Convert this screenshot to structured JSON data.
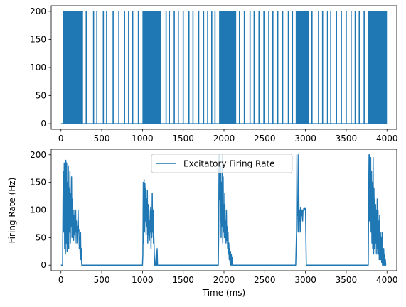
{
  "chart_data": [
    {
      "type": "line",
      "title": "",
      "xlabel": "",
      "ylabel": "",
      "xlim": [
        -120,
        4120
      ],
      "ylim": [
        -10,
        210
      ],
      "xticks": [
        0,
        500,
        1000,
        1500,
        2000,
        2500,
        3000,
        3500,
        4000
      ],
      "yticks": [
        0,
        50,
        100,
        150,
        200
      ],
      "color": "#1f77b4",
      "series": [
        {
          "style": "binary-spike-train",
          "baseline": 0,
          "peak": 200,
          "burst_segments": [
            [
              20,
              270
            ],
            [
              1000,
              1230
            ],
            [
              1940,
              2150
            ],
            [
              2880,
              3040
            ],
            [
              3770,
              4000
            ]
          ],
          "sparse_spikes": [
            310,
            400,
            440,
            520,
            560,
            640,
            710,
            780,
            830,
            880,
            950,
            1290,
            1330,
            1390,
            1440,
            1500,
            1570,
            1620,
            1690,
            1750,
            1800,
            1850,
            1890,
            2190,
            2250,
            2320,
            2370,
            2430,
            2490,
            2550,
            2600,
            2660,
            2720,
            2790,
            2840,
            3080,
            3160,
            3210,
            3270,
            3310,
            3380,
            3440,
            3500,
            3560,
            3610,
            3660,
            3720
          ]
        }
      ]
    },
    {
      "type": "line",
      "title": "",
      "xlabel": "Time (ms)",
      "ylabel": "Firing Rate (Hz)",
      "xlim": [
        -120,
        4120
      ],
      "ylim": [
        -10,
        210
      ],
      "xticks": [
        0,
        500,
        1000,
        1500,
        2000,
        2500,
        3000,
        3500,
        4000
      ],
      "yticks": [
        0,
        50,
        100,
        150,
        200
      ],
      "legend": "top-center",
      "color": "#1f77b4",
      "series": [
        {
          "name": "Excitatory Firing Rate",
          "points": [
            [
              0,
              0
            ],
            [
              20,
              0
            ],
            [
              25,
              120
            ],
            [
              30,
              170
            ],
            [
              35,
              60
            ],
            [
              40,
              185
            ],
            [
              45,
              30
            ],
            [
              50,
              175
            ],
            [
              55,
              20
            ],
            [
              60,
              190
            ],
            [
              65,
              40
            ],
            [
              70,
              185
            ],
            [
              75,
              25
            ],
            [
              80,
              150
            ],
            [
              85,
              50
            ],
            [
              90,
              180
            ],
            [
              95,
              30
            ],
            [
              100,
              140
            ],
            [
              105,
              60
            ],
            [
              110,
              170
            ],
            [
              115,
              40
            ],
            [
              120,
              130
            ],
            [
              125,
              70
            ],
            [
              130,
              160
            ],
            [
              135,
              50
            ],
            [
              140,
              120
            ],
            [
              145,
              60
            ],
            [
              150,
              100
            ],
            [
              155,
              45
            ],
            [
              160,
              90
            ],
            [
              165,
              55
            ],
            [
              170,
              100
            ],
            [
              175,
              40
            ],
            [
              180,
              100
            ],
            [
              185,
              60
            ],
            [
              190,
              80
            ],
            [
              195,
              40
            ],
            [
              200,
              70
            ],
            [
              205,
              50
            ],
            [
              210,
              100
            ],
            [
              215,
              60
            ],
            [
              220,
              65
            ],
            [
              225,
              30
            ],
            [
              230,
              50
            ],
            [
              235,
              20
            ],
            [
              240,
              60
            ],
            [
              245,
              10
            ],
            [
              250,
              30
            ],
            [
              255,
              0
            ],
            [
              260,
              0
            ],
            [
              1000,
              0
            ],
            [
              1005,
              20
            ],
            [
              1010,
              150
            ],
            [
              1015,
              40
            ],
            [
              1020,
              155
            ],
            [
              1025,
              60
            ],
            [
              1030,
              148
            ],
            [
              1035,
              80
            ],
            [
              1040,
              140
            ],
            [
              1045,
              55
            ],
            [
              1050,
              120
            ],
            [
              1055,
              70
            ],
            [
              1060,
              135
            ],
            [
              1065,
              40
            ],
            [
              1070,
              110
            ],
            [
              1075,
              55
            ],
            [
              1080,
              100
            ],
            [
              1085,
              45
            ],
            [
              1090,
              80
            ],
            [
              1095,
              60
            ],
            [
              1100,
              105
            ],
            [
              1105,
              30
            ],
            [
              1110,
              100
            ],
            [
              1115,
              50
            ],
            [
              1120,
              130
            ],
            [
              1125,
              60
            ],
            [
              1130,
              100
            ],
            [
              1135,
              40
            ],
            [
              1140,
              50
            ],
            [
              1145,
              20
            ],
            [
              1150,
              0
            ],
            [
              1160,
              0
            ],
            [
              1170,
              25
            ],
            [
              1175,
              0
            ],
            [
              1180,
              30
            ],
            [
              1185,
              0
            ],
            [
              1190,
              0
            ],
            [
              1930,
              0
            ],
            [
              1935,
              60
            ],
            [
              1940,
              200
            ],
            [
              1945,
              120
            ],
            [
              1950,
              195
            ],
            [
              1955,
              80
            ],
            [
              1960,
              180
            ],
            [
              1965,
              50
            ],
            [
              1970,
              150
            ],
            [
              1975,
              70
            ],
            [
              1980,
              200
            ],
            [
              1985,
              40
            ],
            [
              1990,
              160
            ],
            [
              1995,
              60
            ],
            [
              2000,
              110
            ],
            [
              2005,
              50
            ],
            [
              2010,
              130
            ],
            [
              2015,
              55
            ],
            [
              2020,
              80
            ],
            [
              2025,
              40
            ],
            [
              2030,
              100
            ],
            [
              2035,
              45
            ],
            [
              2040,
              70
            ],
            [
              2045,
              30
            ],
            [
              2050,
              60
            ],
            [
              2055,
              20
            ],
            [
              2060,
              40
            ],
            [
              2065,
              10
            ],
            [
              2070,
              30
            ],
            [
              2075,
              5
            ],
            [
              2080,
              25
            ],
            [
              2085,
              0
            ],
            [
              2090,
              20
            ],
            [
              2095,
              0
            ],
            [
              2100,
              15
            ],
            [
              2105,
              0
            ],
            [
              2110,
              0
            ],
            [
              2880,
              0
            ],
            [
              2885,
              30
            ],
            [
              2890,
              60
            ],
            [
              2895,
              200
            ],
            [
              2900,
              90
            ],
            [
              2905,
              100
            ],
            [
              2910,
              60
            ],
            [
              2915,
              200
            ],
            [
              2920,
              100
            ],
            [
              2925,
              80
            ],
            [
              2930,
              100
            ],
            [
              2935,
              60
            ],
            [
              2940,
              105
            ],
            [
              2945,
              80
            ],
            [
              2950,
              100
            ],
            [
              2955,
              90
            ],
            [
              2960,
              100
            ],
            [
              2965,
              80
            ],
            [
              2970,
              100
            ],
            [
              2975,
              100
            ],
            [
              2980,
              103
            ],
            [
              2985,
              100
            ],
            [
              2990,
              104
            ],
            [
              2995,
              100
            ],
            [
              3000,
              104
            ],
            [
              3005,
              50
            ],
            [
              3010,
              0
            ],
            [
              3020,
              0
            ],
            [
              3770,
              0
            ],
            [
              3775,
              120
            ],
            [
              3780,
              200
            ],
            [
              3785,
              80
            ],
            [
              3790,
              200
            ],
            [
              3795,
              100
            ],
            [
              3800,
              195
            ],
            [
              3805,
              60
            ],
            [
              3810,
              170
            ],
            [
              3815,
              40
            ],
            [
              3820,
              150
            ],
            [
              3825,
              30
            ],
            [
              3830,
              195
            ],
            [
              3835,
              20
            ],
            [
              3840,
              140
            ],
            [
              3845,
              30
            ],
            [
              3850,
              120
            ],
            [
              3855,
              20
            ],
            [
              3860,
              110
            ],
            [
              3865,
              40
            ],
            [
              3870,
              100
            ],
            [
              3875,
              20
            ],
            [
              3880,
              120
            ],
            [
              3885,
              30
            ],
            [
              3890,
              100
            ],
            [
              3895,
              20
            ],
            [
              3900,
              80
            ],
            [
              3905,
              10
            ],
            [
              3910,
              90
            ],
            [
              3915,
              20
            ],
            [
              3920,
              60
            ],
            [
              3925,
              10
            ],
            [
              3930,
              50
            ],
            [
              3935,
              5
            ],
            [
              3940,
              60
            ],
            [
              3945,
              0
            ],
            [
              3950,
              30
            ],
            [
              3955,
              0
            ],
            [
              3960,
              30
            ],
            [
              3965,
              0
            ],
            [
              3970,
              20
            ],
            [
              3975,
              0
            ],
            [
              3980,
              10
            ],
            [
              3985,
              0
            ],
            [
              3990,
              0
            ]
          ]
        }
      ]
    }
  ]
}
